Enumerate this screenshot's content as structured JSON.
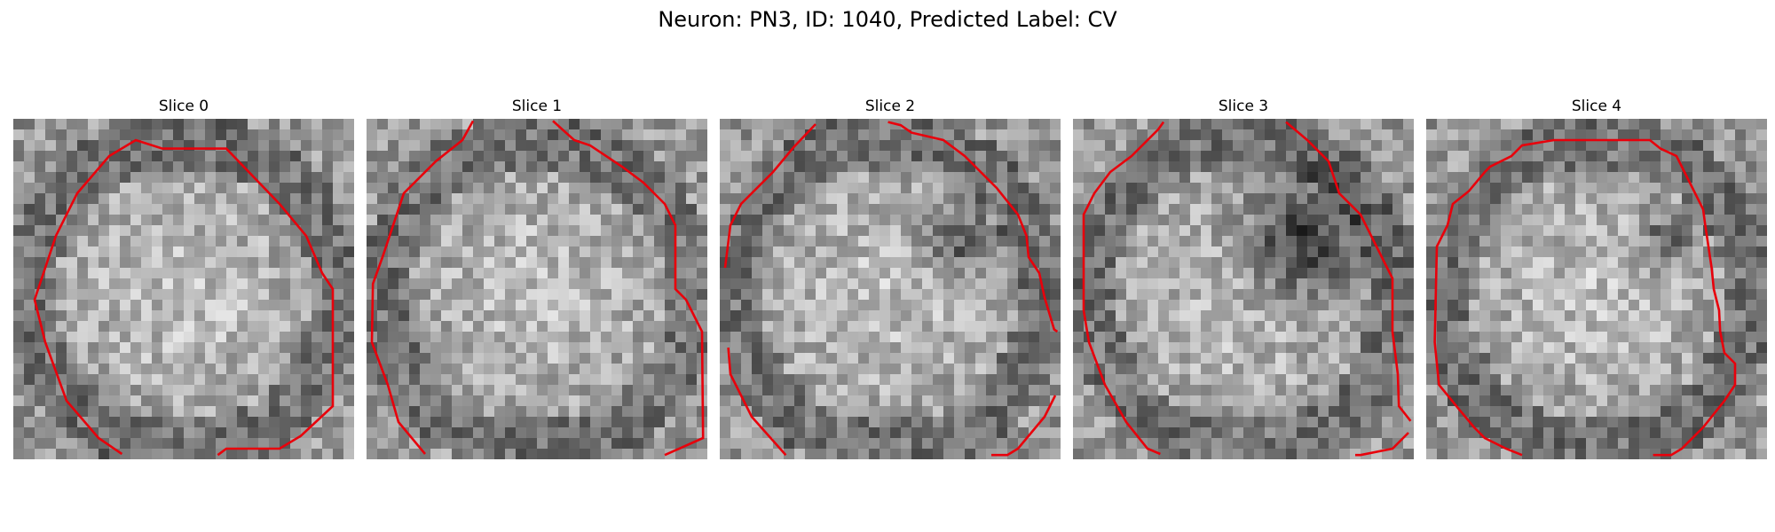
{
  "figure": {
    "title": "Neuron: PN3, ID: 1040, Predicted Label: CV"
  },
  "colors": {
    "contour": "#e8000b",
    "background": "#ffffff"
  },
  "slices": [
    {
      "title": "Slice 0",
      "image": "grayscale EM patch with bright central neuron body and red contour",
      "dark_blob": null
    },
    {
      "title": "Slice 1",
      "image": "grayscale EM patch with bright central neuron body and red contour",
      "dark_blob": null
    },
    {
      "title": "Slice 2",
      "image": "grayscale EM patch with dark blob upper-right and red contour",
      "dark_blob": "small"
    },
    {
      "title": "Slice 3",
      "image": "grayscale EM patch with large dark blob upper-right and red contour",
      "dark_blob": "large"
    },
    {
      "title": "Slice 4",
      "image": "grayscale EM patch with dark spot upper-right and red contour",
      "dark_blob": "small"
    }
  ]
}
